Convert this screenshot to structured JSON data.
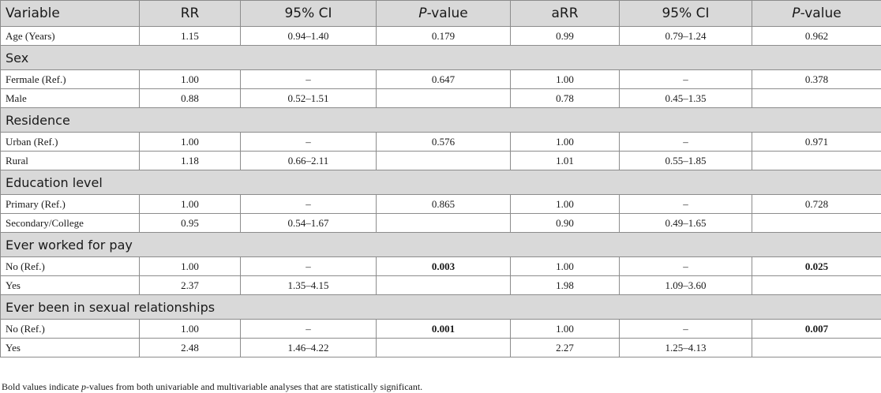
{
  "headers": {
    "variable": "Variable",
    "rr": "RR",
    "ci1": "95% CI",
    "p1_italic": "P",
    "p1_rest": "-value",
    "arr": "aRR",
    "ci2": "95% CI",
    "p2_italic": "P",
    "p2_rest": "-value"
  },
  "age": {
    "label": "Age (Years)",
    "rr": "1.15",
    "ci1": "0.94–1.40",
    "p1": "0.179",
    "arr": "0.99",
    "ci2": "0.79–1.24",
    "p2": "0.962"
  },
  "groups": [
    {
      "title": "Sex",
      "rows": [
        {
          "label": "Fermale (Ref.)",
          "rr": "1.00",
          "ci1": "–",
          "p1": "0.647",
          "arr": "1.00",
          "ci2": "–",
          "p2": "0.378"
        },
        {
          "label": "Male",
          "rr": "0.88",
          "ci1": "0.52–1.51",
          "p1": "",
          "arr": "0.78",
          "ci2": "0.45–1.35",
          "p2": ""
        }
      ]
    },
    {
      "title": "Residence",
      "rows": [
        {
          "label": "Urban (Ref.)",
          "rr": "1.00",
          "ci1": "–",
          "p1": "0.576",
          "arr": "1.00",
          "ci2": "–",
          "p2": "0.971"
        },
        {
          "label": "Rural",
          "rr": "1.18",
          "ci1": "0.66–2.11",
          "p1": "",
          "arr": "1.01",
          "ci2": "0.55–1.85",
          "p2": ""
        }
      ]
    },
    {
      "title": "Education level",
      "rows": [
        {
          "label": "Primary (Ref.)",
          "rr": "1.00",
          "ci1": "–",
          "p1": "0.865",
          "arr": "1.00",
          "ci2": "–",
          "p2": "0.728"
        },
        {
          "label": "Secondary/College",
          "rr": "0.95",
          "ci1": "0.54–1.67",
          "p1": "",
          "arr": "0.90",
          "ci2": "0.49–1.65",
          "p2": ""
        }
      ]
    },
    {
      "title": "Ever worked for pay",
      "rows": [
        {
          "label": "No (Ref.)",
          "rr": "1.00",
          "ci1": "–",
          "p1": "0.003",
          "arr": "1.00",
          "ci2": "–",
          "p2": "0.025"
        },
        {
          "label": "Yes",
          "rr": "2.37",
          "ci1": "1.35–4.15",
          "p1": "",
          "arr": "1.98",
          "ci2": "1.09–3.60",
          "p2": ""
        }
      ]
    },
    {
      "title": "Ever been in sexual relationships",
      "rows": [
        {
          "label": "No (Ref.)",
          "rr": "1.00",
          "ci1": "–",
          "p1": "0.001",
          "arr": "1.00",
          "ci2": "–",
          "p2": "0.007"
        },
        {
          "label": "Yes",
          "rr": "2.48",
          "ci1": "1.46–4.22",
          "p1": "",
          "arr": "2.27",
          "ci2": "1.25–4.13",
          "p2": ""
        }
      ]
    }
  ],
  "footnote": {
    "before": "Bold values indicate ",
    "italic": "p",
    "after": "-values from both univariable and multivariable analyses that are statistically significant."
  }
}
